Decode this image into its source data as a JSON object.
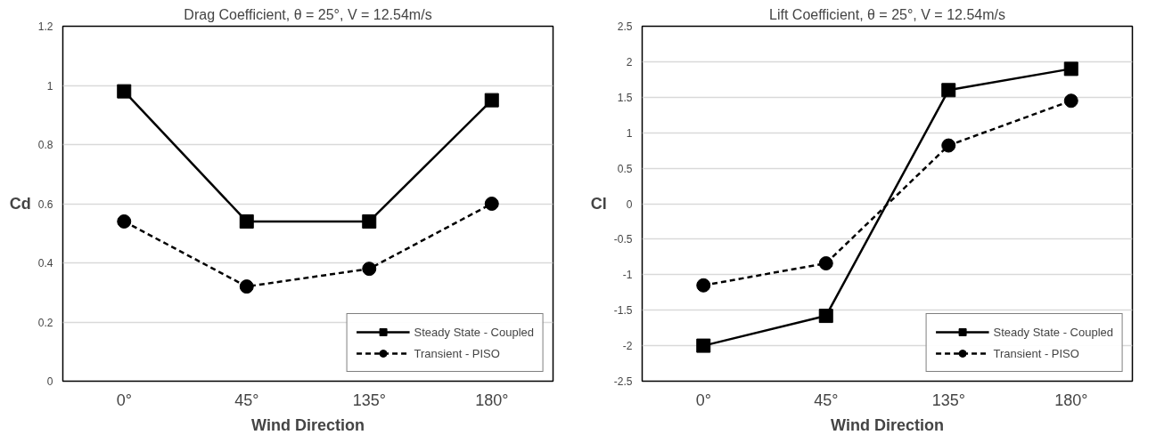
{
  "chart_data": [
    {
      "type": "line",
      "title": "Drag Coefficient, θ = 25°, V = 12.54m/s",
      "xlabel": "Wind Direction",
      "ylabel": "Cd",
      "categories": [
        "0°",
        "45°",
        "135°",
        "180°"
      ],
      "series": [
        {
          "name": "Steady State - Coupled",
          "color": "#000000",
          "marker": "square",
          "line_style": "solid",
          "values": [
            0.98,
            0.54,
            0.54,
            0.95
          ]
        },
        {
          "name": "Transient - PISO",
          "color": "#000000",
          "marker": "circle",
          "line_style": "dashed",
          "values": [
            0.54,
            0.32,
            0.38,
            0.6
          ]
        }
      ],
      "ylim": [
        0,
        1.2
      ],
      "yticks": [
        0,
        0.2,
        0.4,
        0.6,
        0.8,
        1,
        1.2
      ],
      "grid": "y",
      "legend": "bottom right"
    },
    {
      "type": "line",
      "title": "Lift Coefficient, θ = 25°, V = 12.54m/s",
      "xlabel": "Wind Direction",
      "ylabel": "Cl",
      "categories": [
        "0°",
        "45°",
        "135°",
        "180°"
      ],
      "series": [
        {
          "name": "Steady State - Coupled",
          "color": "#000000",
          "marker": "square",
          "line_style": "solid",
          "values": [
            -2.0,
            -1.58,
            1.6,
            1.9
          ]
        },
        {
          "name": "Transient - PISO",
          "color": "#000000",
          "marker": "circle",
          "line_style": "dashed",
          "values": [
            -1.15,
            -0.84,
            0.82,
            1.45
          ]
        }
      ],
      "ylim": [
        -2.5,
        2.5
      ],
      "yticks": [
        -2.5,
        -2,
        -1.5,
        -1,
        -0.5,
        0,
        0.5,
        1,
        1.5,
        2,
        2.5
      ],
      "grid": "y",
      "legend": "bottom right"
    }
  ]
}
